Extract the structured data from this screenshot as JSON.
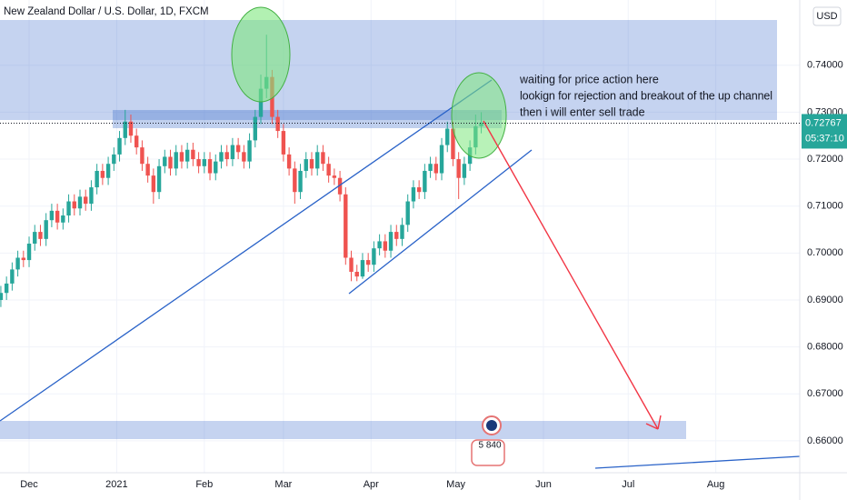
{
  "chart_data": {
    "type": "candlestick",
    "title": "New Zealand Dollar / U.S. Dollar, 1D, FXCM",
    "currency": "USD",
    "last_price": 0.72767,
    "countdown": "05:37:10",
    "annotation": [
      "waiting for price action here",
      "lookign for rejection and breakout of the up channel",
      "then i will enter sell trade"
    ],
    "event_label": "5 840",
    "up_color": "#26a69a",
    "down_color": "#ef5350",
    "grid": true,
    "xlim": [
      -10.3,
      272.7
    ],
    "xticks": [
      {
        "value": 0,
        "label": "Dec"
      },
      {
        "value": 31,
        "label": "2021"
      },
      {
        "value": 62,
        "label": "Feb"
      },
      {
        "value": 90,
        "label": "Mar"
      },
      {
        "value": 121,
        "label": "Apr"
      },
      {
        "value": 151,
        "label": "May"
      },
      {
        "value": 182,
        "label": "Jun"
      },
      {
        "value": 212,
        "label": "Jul"
      },
      {
        "value": 243,
        "label": "Aug"
      }
    ],
    "ylim": [
      0.6532,
      0.7539
    ],
    "yticks": [
      {
        "value": 0.66,
        "label": "0.66000"
      },
      {
        "value": 0.67,
        "label": "0.67000"
      },
      {
        "value": 0.68,
        "label": "0.68000"
      },
      {
        "value": 0.69,
        "label": "0.69000"
      },
      {
        "value": 0.7,
        "label": "0.70000"
      },
      {
        "value": 0.71,
        "label": "0.71000"
      },
      {
        "value": 0.72,
        "label": "0.72000"
      },
      {
        "value": 0.73,
        "label": "0.73000"
      },
      {
        "value": 0.74,
        "label": "0.74000"
      }
    ],
    "x": [
      -10,
      -8,
      -6,
      -4,
      -2,
      0,
      2,
      4,
      6,
      8,
      10,
      12,
      14,
      16,
      18,
      20,
      22,
      24,
      26,
      28,
      30,
      32,
      34,
      36,
      38,
      40,
      42,
      44,
      46,
      48,
      50,
      52,
      54,
      56,
      58,
      60,
      62,
      64,
      66,
      68,
      70,
      72,
      74,
      76,
      78,
      80,
      82,
      84,
      86,
      88,
      90,
      92,
      94,
      96,
      98,
      100,
      102,
      104,
      106,
      108,
      110,
      112,
      114,
      116,
      118,
      120,
      122,
      124,
      126,
      128,
      130,
      132,
      134,
      136,
      138,
      140,
      142,
      144,
      146,
      148,
      150,
      152,
      154,
      156,
      158,
      160
    ],
    "open": [
      0.69,
      0.6915,
      0.6935,
      0.6965,
      0.699,
      0.6985,
      0.702,
      0.7045,
      0.703,
      0.707,
      0.709,
      0.7065,
      0.708,
      0.711,
      0.7095,
      0.712,
      0.7105,
      0.714,
      0.7175,
      0.716,
      0.719,
      0.721,
      0.7245,
      0.728,
      0.725,
      0.7225,
      0.719,
      0.7165,
      0.713,
      0.7185,
      0.7205,
      0.718,
      0.7215,
      0.7195,
      0.722,
      0.72,
      0.7185,
      0.72,
      0.717,
      0.7195,
      0.7215,
      0.72,
      0.723,
      0.7215,
      0.7195,
      0.724,
      0.729,
      0.735,
      0.7375,
      0.729,
      0.726,
      0.721,
      0.718,
      0.713,
      0.7175,
      0.72,
      0.718,
      0.7215,
      0.719,
      0.7165,
      0.716,
      0.7125,
      0.699,
      0.696,
      0.695,
      0.6985,
      0.6975,
      0.701,
      0.7025,
      0.7005,
      0.7045,
      0.703,
      0.706,
      0.711,
      0.714,
      0.713,
      0.7175,
      0.719,
      0.717,
      0.723,
      0.7265,
      0.72,
      0.716,
      0.719,
      0.7225,
      0.727
    ],
    "high": [
      0.693,
      0.695,
      0.698,
      0.7005,
      0.7005,
      0.7035,
      0.706,
      0.706,
      0.7085,
      0.7105,
      0.7105,
      0.7095,
      0.7125,
      0.7125,
      0.7135,
      0.7135,
      0.7155,
      0.719,
      0.719,
      0.7205,
      0.7225,
      0.726,
      0.7305,
      0.7295,
      0.7265,
      0.724,
      0.7205,
      0.718,
      0.72,
      0.722,
      0.722,
      0.723,
      0.723,
      0.7235,
      0.7235,
      0.7215,
      0.7215,
      0.7215,
      0.721,
      0.723,
      0.723,
      0.7245,
      0.7245,
      0.723,
      0.7255,
      0.7305,
      0.738,
      0.7465,
      0.739,
      0.7305,
      0.7275,
      0.7225,
      0.7195,
      0.719,
      0.7215,
      0.7215,
      0.723,
      0.723,
      0.7205,
      0.718,
      0.7175,
      0.714,
      0.7005,
      0.6975,
      0.7,
      0.7,
      0.7025,
      0.704,
      0.704,
      0.706,
      0.706,
      0.7075,
      0.7125,
      0.7155,
      0.7155,
      0.719,
      0.7205,
      0.7205,
      0.7245,
      0.728,
      0.728,
      0.7215,
      0.7205,
      0.724,
      0.7295,
      0.73
    ],
    "low": [
      0.6885,
      0.69,
      0.692,
      0.695,
      0.697,
      0.697,
      0.7005,
      0.7015,
      0.7015,
      0.7055,
      0.705,
      0.705,
      0.7065,
      0.708,
      0.708,
      0.709,
      0.709,
      0.7125,
      0.7145,
      0.7145,
      0.7175,
      0.7195,
      0.723,
      0.7235,
      0.721,
      0.7175,
      0.715,
      0.7105,
      0.7115,
      0.717,
      0.7165,
      0.7165,
      0.718,
      0.718,
      0.7185,
      0.717,
      0.717,
      0.7155,
      0.7155,
      0.718,
      0.7185,
      0.7185,
      0.72,
      0.718,
      0.718,
      0.7225,
      0.7275,
      0.733,
      0.7275,
      0.7245,
      0.7195,
      0.7165,
      0.7105,
      0.7115,
      0.716,
      0.7165,
      0.7165,
      0.7175,
      0.715,
      0.7145,
      0.711,
      0.6975,
      0.694,
      0.694,
      0.6945,
      0.696,
      0.696,
      0.6995,
      0.699,
      0.699,
      0.7015,
      0.7015,
      0.7045,
      0.7095,
      0.7115,
      0.7115,
      0.716,
      0.7155,
      0.7155,
      0.7215,
      0.7185,
      0.7115,
      0.7145,
      0.7175,
      0.721,
      0.7255
    ],
    "close": [
      0.6915,
      0.6935,
      0.6965,
      0.699,
      0.6985,
      0.702,
      0.7045,
      0.703,
      0.707,
      0.709,
      0.7065,
      0.708,
      0.711,
      0.7095,
      0.712,
      0.7105,
      0.714,
      0.7175,
      0.716,
      0.719,
      0.721,
      0.7245,
      0.728,
      0.725,
      0.7225,
      0.719,
      0.7165,
      0.713,
      0.7185,
      0.7205,
      0.718,
      0.7215,
      0.7195,
      0.722,
      0.72,
      0.7185,
      0.72,
      0.717,
      0.7195,
      0.7215,
      0.72,
      0.723,
      0.7215,
      0.7195,
      0.724,
      0.729,
      0.735,
      0.7375,
      0.729,
      0.726,
      0.721,
      0.718,
      0.713,
      0.7175,
      0.72,
      0.718,
      0.7215,
      0.719,
      0.7165,
      0.716,
      0.7125,
      0.699,
      0.696,
      0.695,
      0.6985,
      0.6975,
      0.701,
      0.7025,
      0.7005,
      0.7045,
      0.703,
      0.706,
      0.711,
      0.714,
      0.713,
      0.7175,
      0.719,
      0.717,
      0.723,
      0.7265,
      0.72,
      0.716,
      0.719,
      0.7225,
      0.727,
      0.7277
    ]
  }
}
